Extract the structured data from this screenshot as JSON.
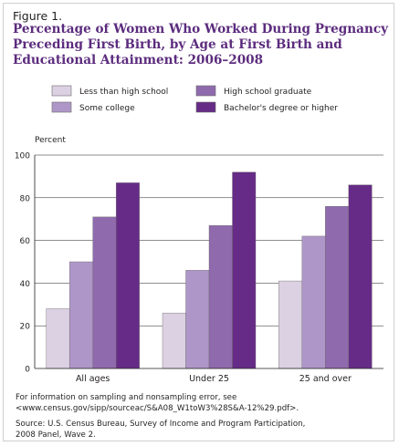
{
  "figure_label": "Figure 1.",
  "title_lines": [
    "Percentage of Women Who Worked During Pregnancy",
    "Preceding First Birth, by Age at First Birth and",
    "Educational Attainment: 2006–2008"
  ],
  "notes": {
    "sampling_lines": [
      "For information on sampling and nonsampling error, see",
      "<www.census.gov/sipp/sourceac/S&A08_W1toW3%28S&A-12%29.pdf>."
    ],
    "source_lines": [
      "Source: U.S. Census Bureau, Survey of Income and Program Participation,",
      "2008 Panel, Wave 2."
    ]
  },
  "colors": {
    "title": "#5c2c7e",
    "frame": "#cfcfcf"
  },
  "chart_data": {
    "type": "bar",
    "title": "Percentage of Women Who Worked During Pregnancy Preceding First Birth, by Age at First Birth and Educational Attainment: 2006–2008",
    "ylabel": "Percent",
    "xlabel": "",
    "ylim": [
      0,
      100
    ],
    "yticks": [
      0,
      20,
      40,
      60,
      80,
      100
    ],
    "grid": true,
    "legend_position": "top",
    "categories": [
      "All ages",
      "Under 25",
      "25 and over"
    ],
    "series": [
      {
        "name": "Less than high school",
        "color": "#dcd0e3",
        "values": [
          28,
          26,
          41
        ]
      },
      {
        "name": "Some college",
        "color": "#ae97c8",
        "values": [
          50,
          46,
          62
        ]
      },
      {
        "name": "High school graduate",
        "color": "#8f6aad",
        "values": [
          71,
          67,
          76
        ]
      },
      {
        "name": "Bachelor's degree or higher",
        "color": "#662b87",
        "values": [
          87,
          92,
          86
        ]
      }
    ]
  }
}
